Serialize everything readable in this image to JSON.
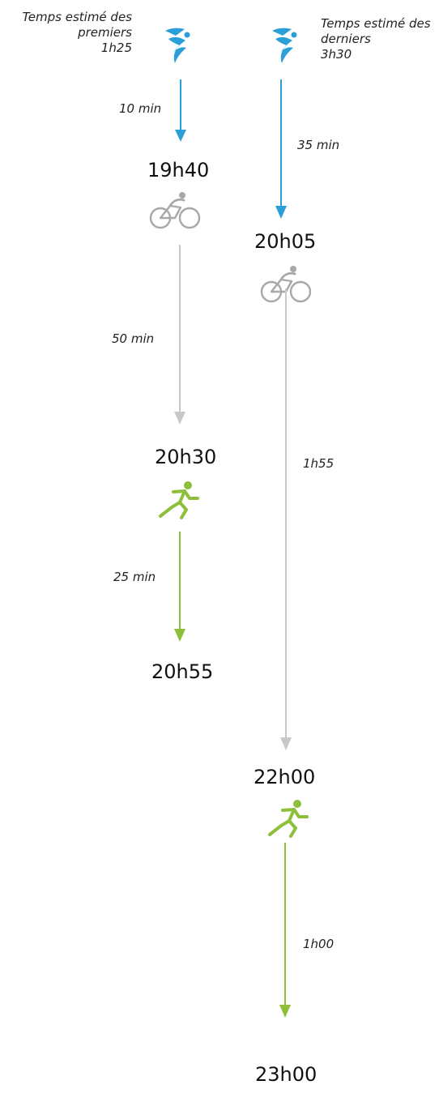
{
  "colors": {
    "swim": "#2a9fd8",
    "bike": "#c8c8c8",
    "bike_icon": "#a8a8a8",
    "run": "#8dbf3b",
    "text": "#111111"
  },
  "icons": {
    "swim": "swimmer-icon",
    "bike": "cyclist-icon",
    "run": "runner-icon"
  },
  "first": {
    "header_line1": "Temps estimé des",
    "header_line2": "premiers",
    "header_line3": "1h25",
    "swim_duration": "10 min",
    "swim_end_time": "19h40",
    "bike_duration": "50 min",
    "bike_end_time": "20h30",
    "run_duration": "25 min",
    "run_end_time": "20h55"
  },
  "last": {
    "header_line1": "Temps estimé des",
    "header_line2": "derniers",
    "header_line3": "3h30",
    "swim_duration": "35 min",
    "swim_end_time": "20h05",
    "bike_duration": "1h55",
    "bike_end_time": "22h00",
    "run_duration": "1h00",
    "run_end_time": "23h00"
  }
}
